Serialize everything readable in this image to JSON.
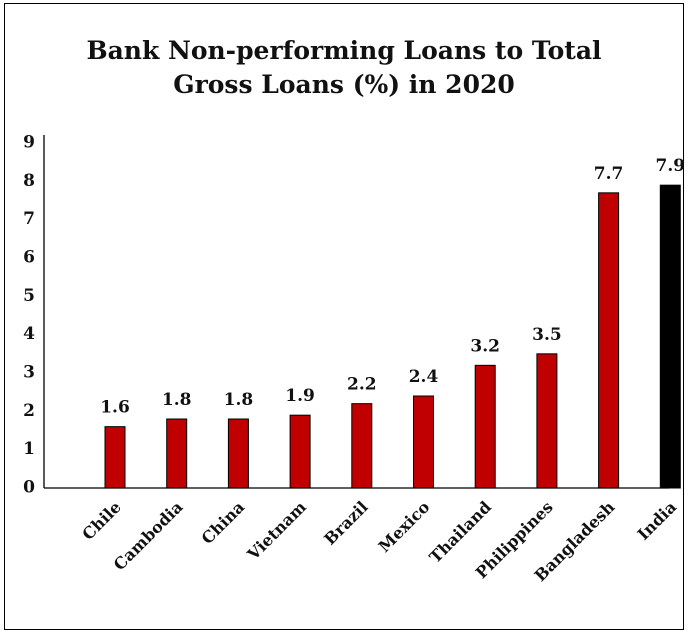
{
  "chart_data": {
    "type": "bar",
    "title_lines": [
      "Bank Non-performing Loans to Total",
      "Gross Loans (%) in 2020"
    ],
    "categories": [
      "Chile",
      "Cambodia",
      "China",
      "Vietnam",
      "Brazil",
      "Mexico",
      "Thailand",
      "Philippines",
      "Bangladesh",
      "India"
    ],
    "values": [
      1.6,
      1.8,
      1.8,
      1.9,
      2.2,
      2.4,
      3.2,
      3.5,
      7.7,
      7.9
    ],
    "ylim": [
      0,
      9
    ],
    "yticks": [
      0,
      1,
      2,
      3,
      4,
      5,
      6,
      7,
      8,
      9
    ],
    "grid": false,
    "legend": "none",
    "bar_colors": [
      "#c00000",
      "#c00000",
      "#c00000",
      "#c00000",
      "#c00000",
      "#c00000",
      "#c00000",
      "#c00000",
      "#c00000",
      "#000000"
    ],
    "bar_outline": "#000000"
  }
}
